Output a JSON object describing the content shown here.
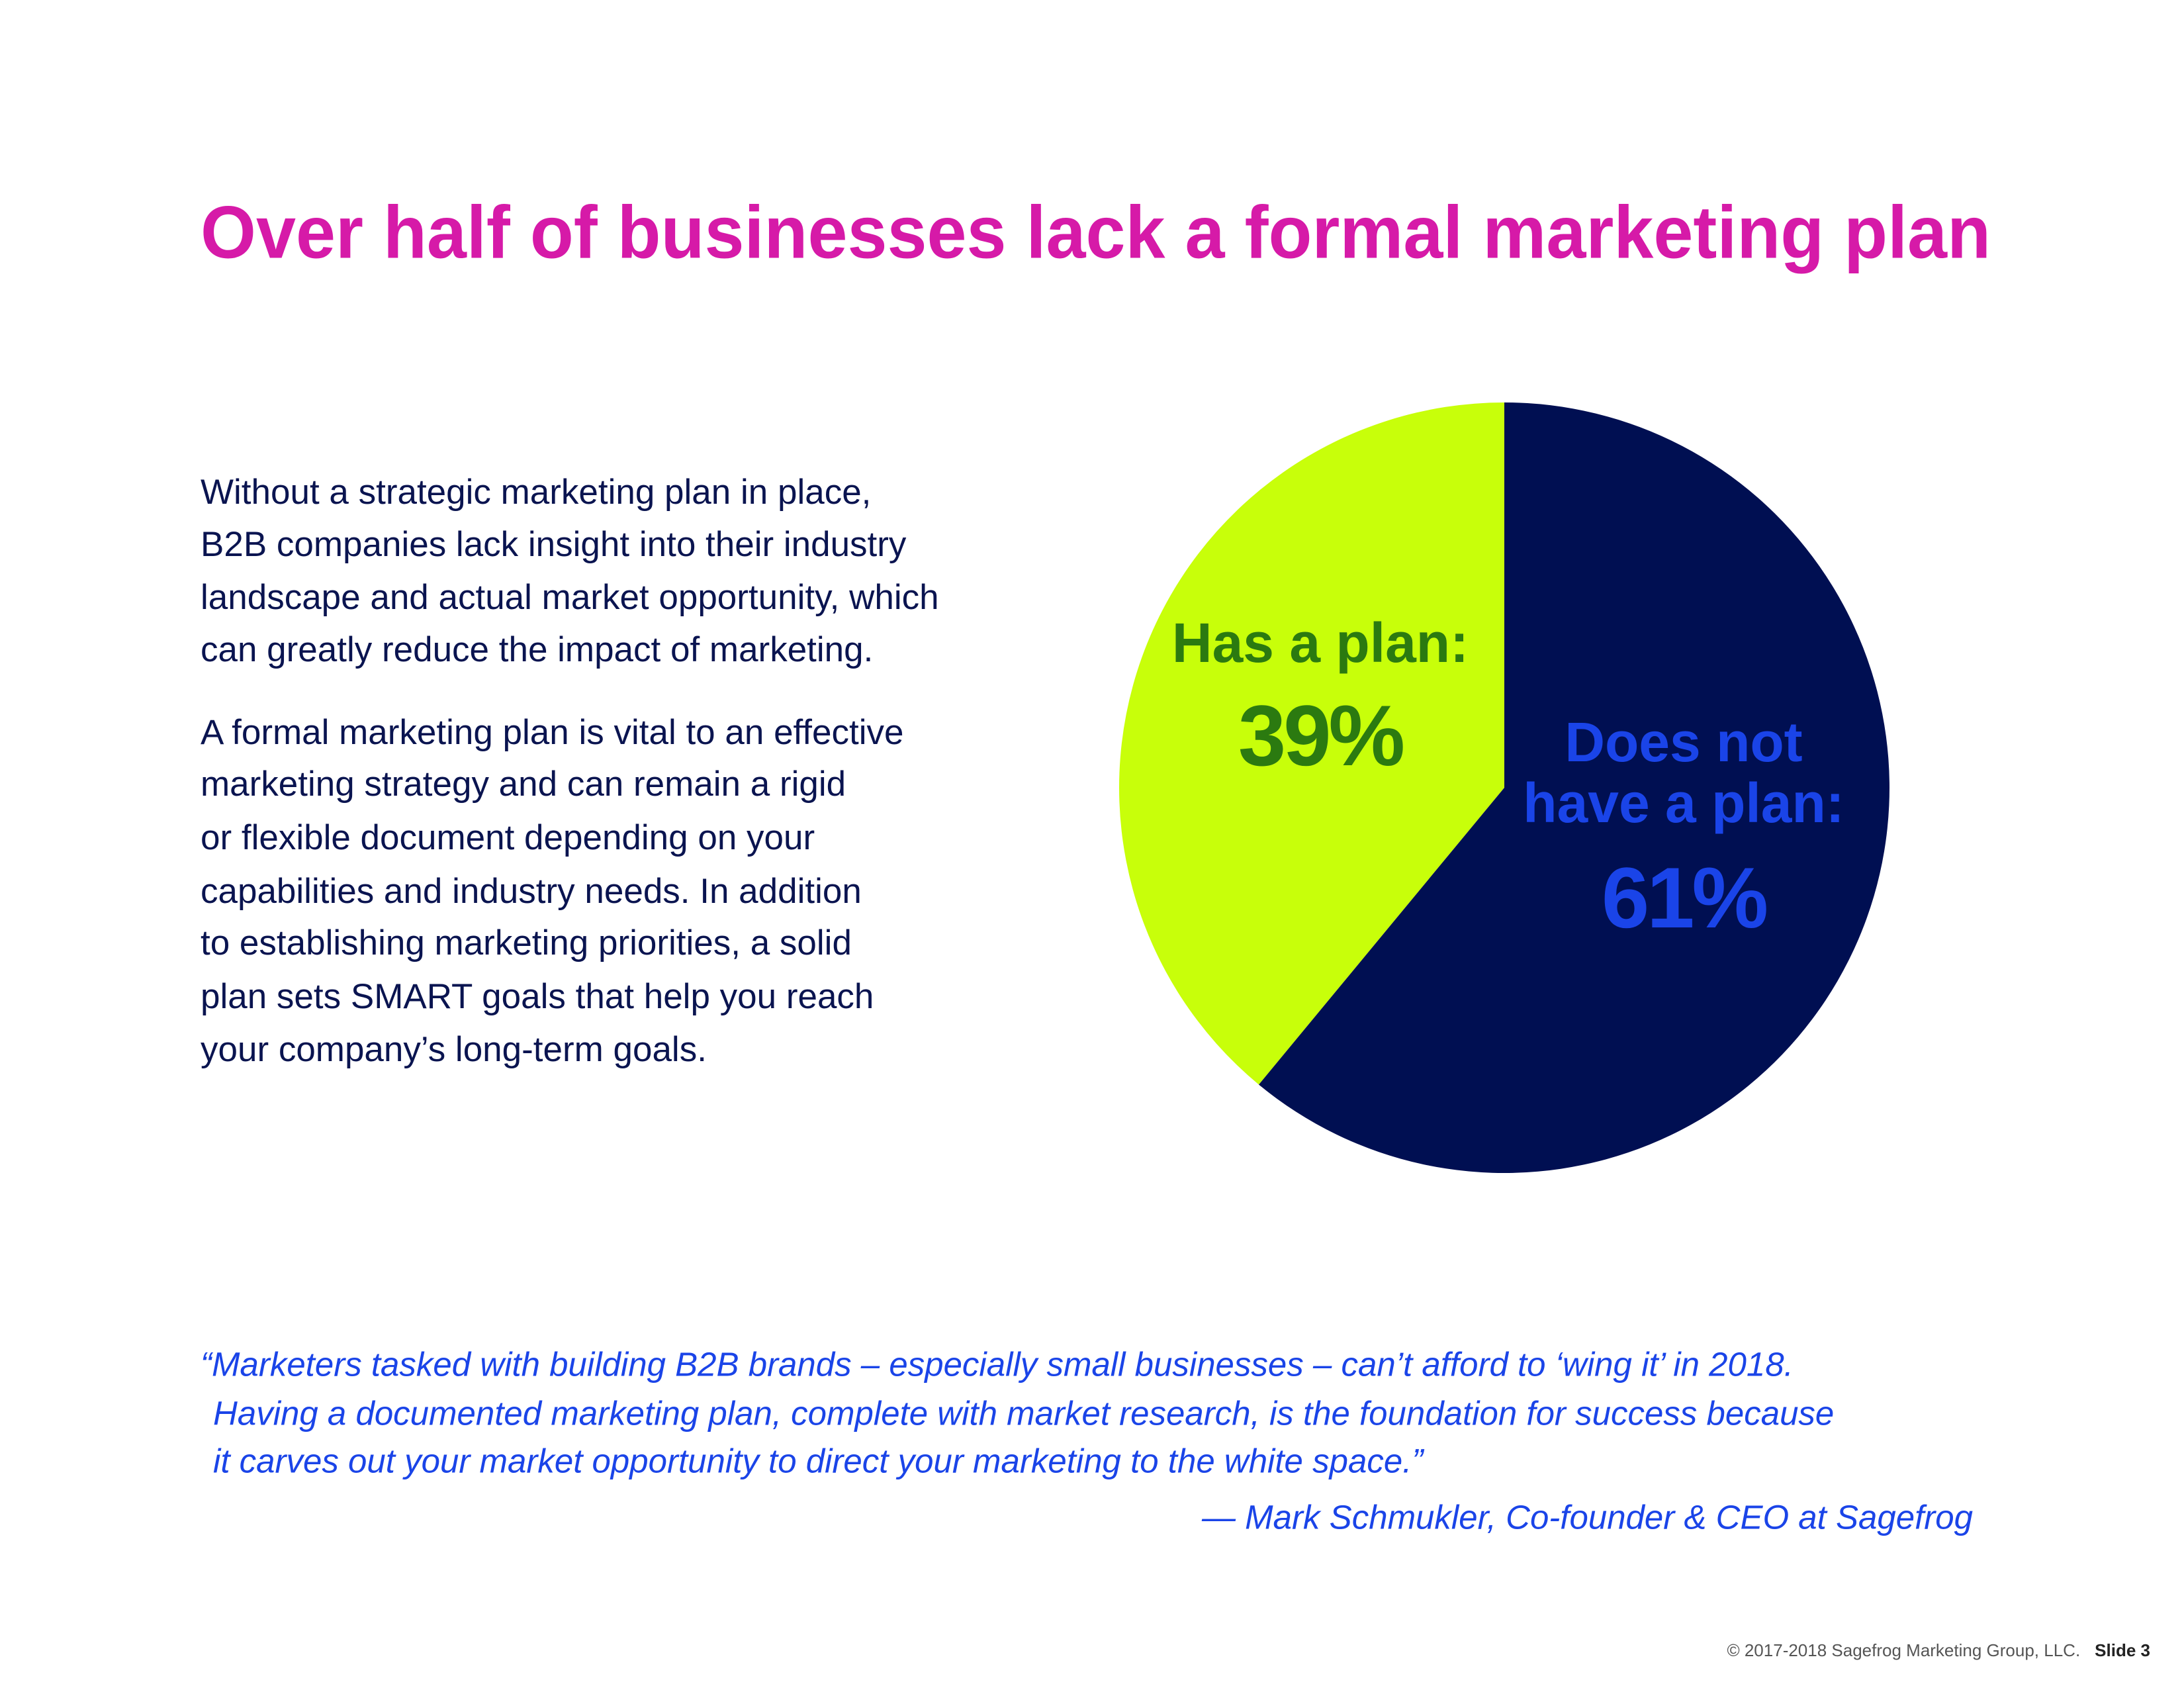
{
  "chart_data": {
    "type": "pie",
    "title": "Over half of businesses lack a formal marketing plan",
    "categories": [
      "Has a plan:",
      "Does not\nhave a plan:"
    ],
    "values": [
      39,
      61
    ],
    "value_labels": [
      "39%",
      "61%"
    ],
    "colors": [
      "#c8ff0a",
      "#000f52"
    ],
    "label_colors": [
      "#2b7a10",
      "#1a44e8"
    ]
  },
  "body": [
    [
      "Without a strategic marketing plan in place,",
      "B2B companies lack insight into their industry",
      "landscape and actual market opportunity, which",
      "can greatly reduce the impact of marketing."
    ],
    [
      "A formal marketing plan is vital to an effective",
      "marketing strategy and can remain a rigid",
      "or flexible document depending on your",
      "capabilities and industry needs. In addition",
      "to establishing marketing priorities, a solid",
      "plan sets SMART goals that help you reach",
      "your company’s long-term goals."
    ]
  ],
  "quote": [
    "“Marketers tasked with building B2B brands – especially small businesses – can’t afford to ‘wing it’ in 2018.",
    "Having a documented marketing plan, complete with market research, is the foundation for success because",
    "it carves out your market opportunity to direct your marketing to the white space.”"
  ],
  "attribution": "— Mark Schmukler, Co-founder & CEO at Sagefrog",
  "footer": {
    "copyright": "© 2017-2018 Sagefrog Marketing Group, LLC.",
    "slide": "Slide 3"
  }
}
